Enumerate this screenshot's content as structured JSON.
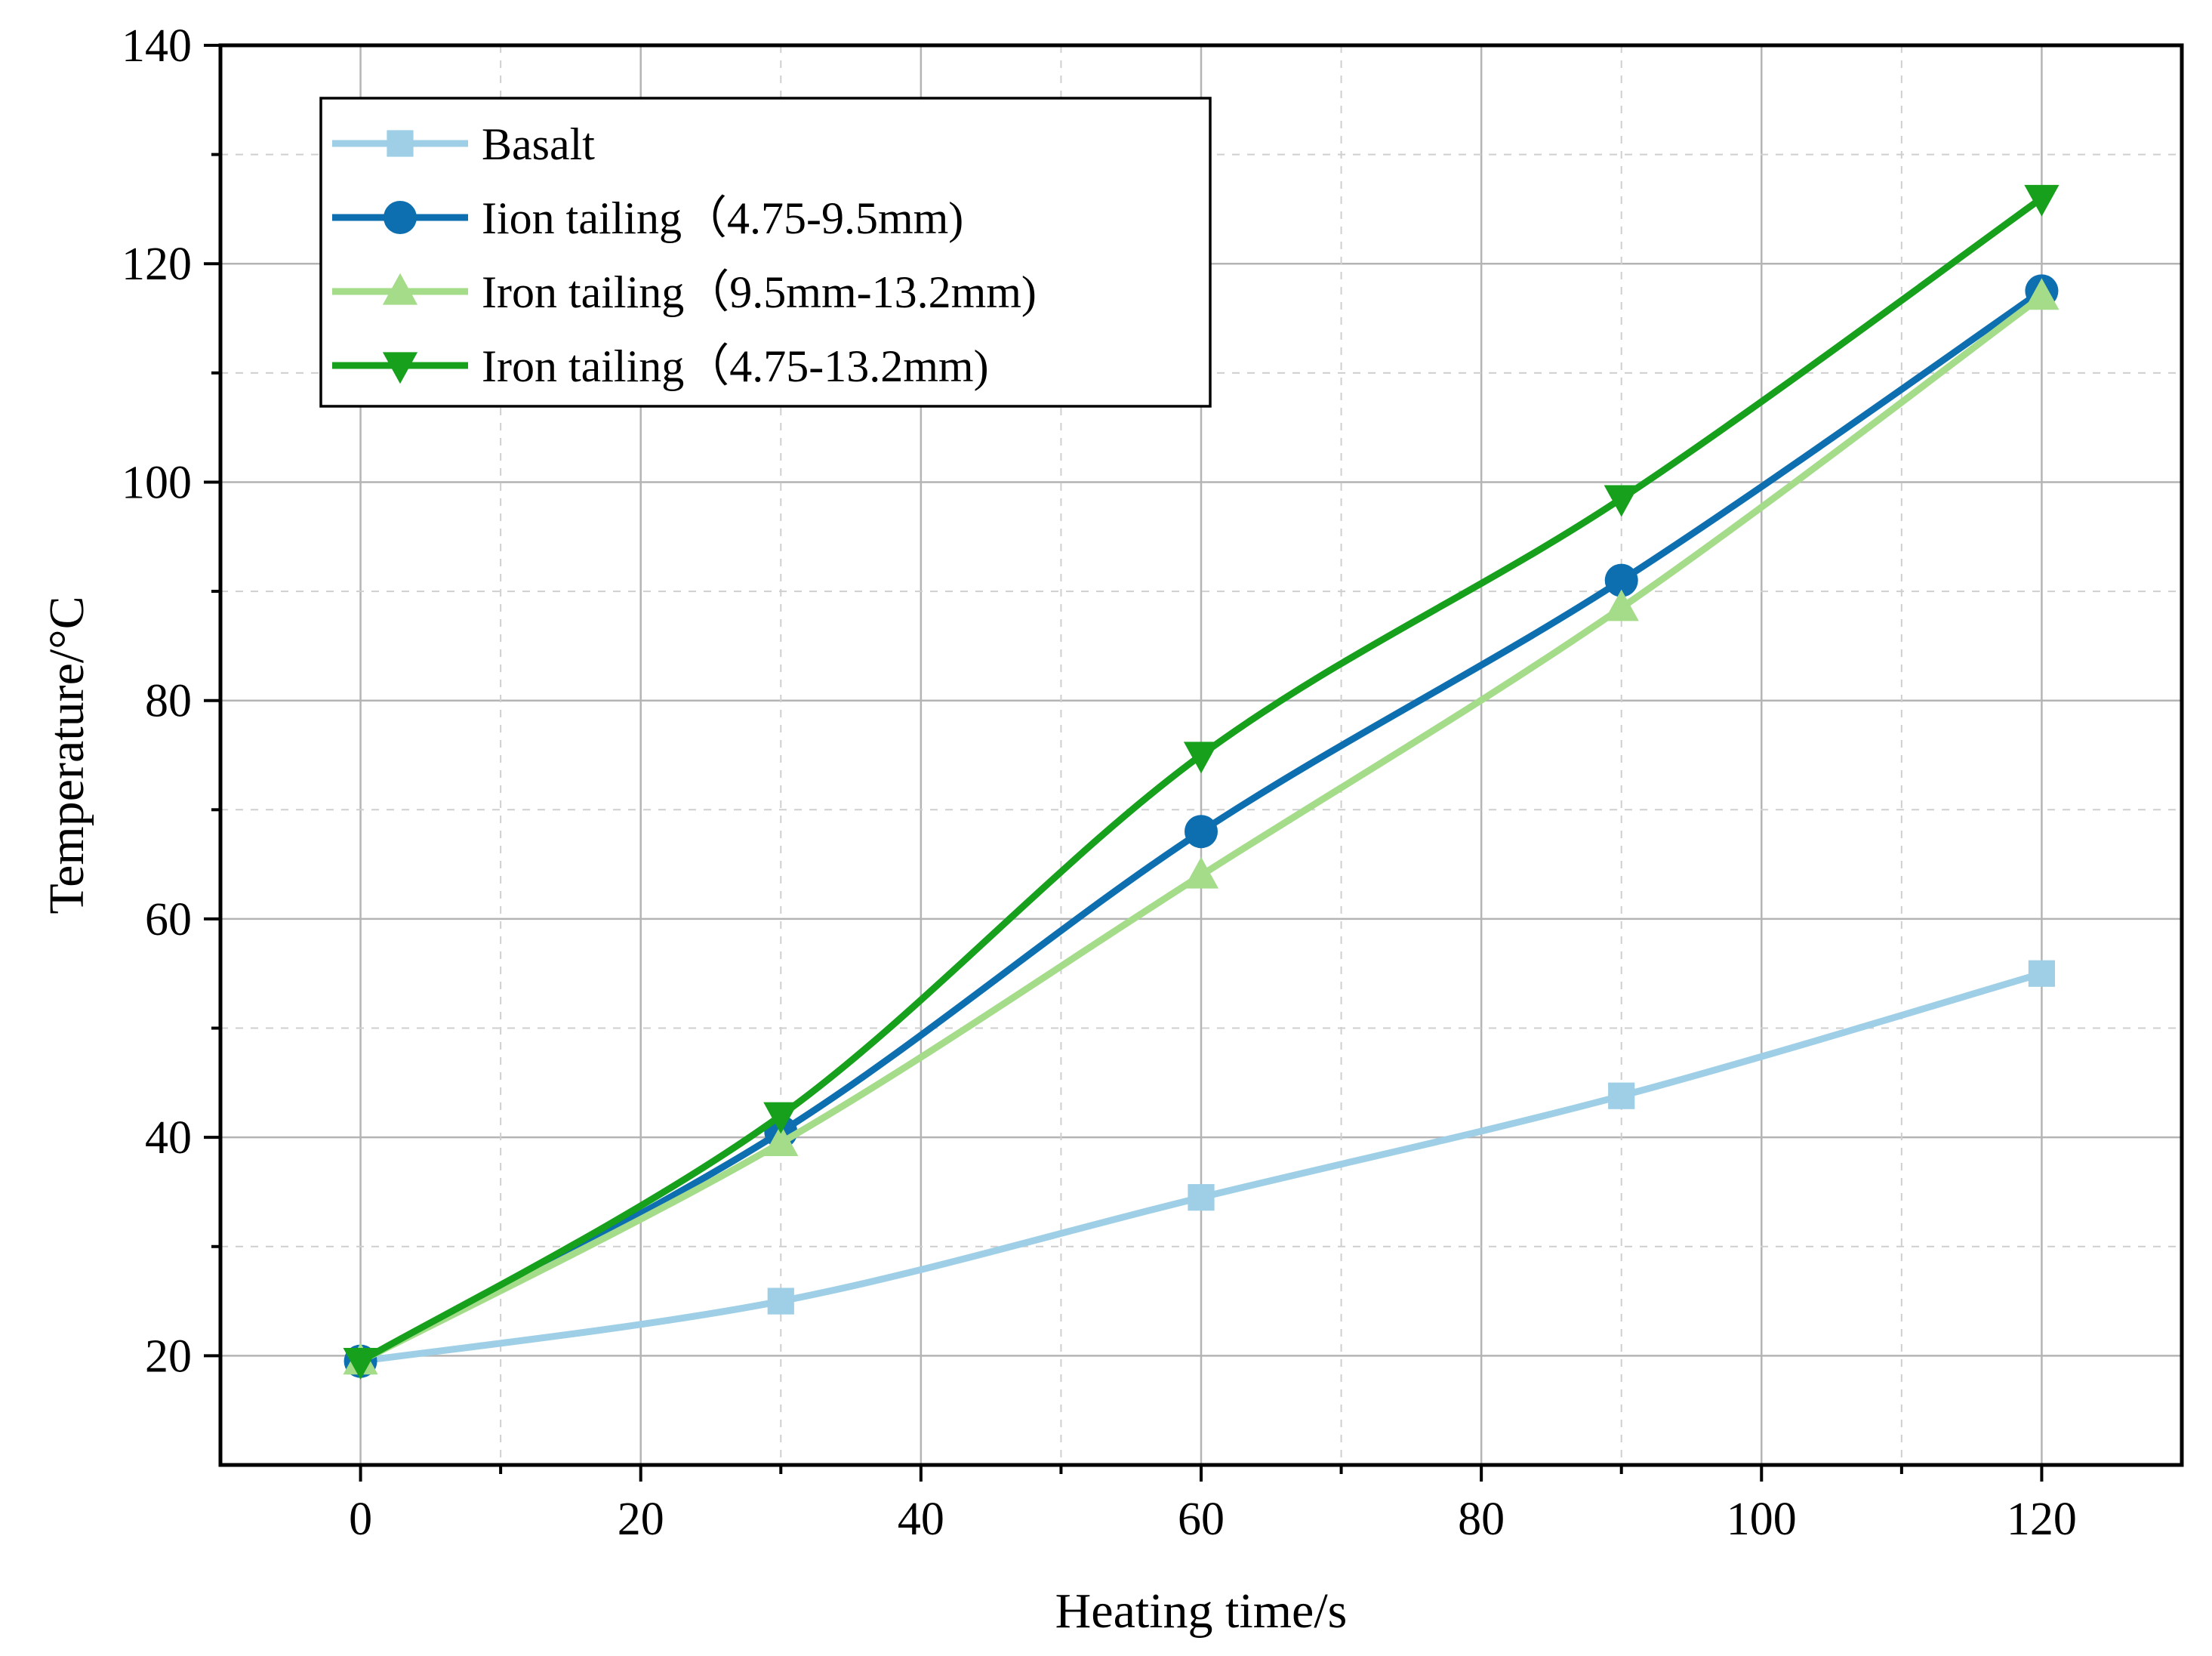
{
  "chart_data": {
    "type": "line",
    "title": "",
    "xlabel": "Heating time/s",
    "ylabel": "Temperature/°C",
    "xlim": [
      -10,
      130
    ],
    "ylim": [
      10,
      140
    ],
    "xticks": [
      0,
      20,
      40,
      60,
      80,
      100,
      120
    ],
    "yticks": [
      20,
      40,
      60,
      80,
      100,
      120,
      140
    ],
    "xtick_labels": [
      "0",
      "20",
      "40",
      "60",
      "80",
      "100",
      "120"
    ],
    "ytick_labels": [
      "20",
      "40",
      "60",
      "80",
      "100",
      "120",
      "140"
    ],
    "grid": true,
    "legend_position": "top-left",
    "x": [
      0,
      30,
      60,
      90,
      120
    ],
    "series": [
      {
        "name": "Basalt",
        "values": [
          19.5,
          25,
          34.5,
          43.8,
          55
        ],
        "color": "#9ecfe6",
        "marker": "square"
      },
      {
        "name": "Iion tailing（4.75-9.5mm)",
        "values": [
          19.5,
          40.5,
          68,
          91,
          117.5
        ],
        "color": "#0d6fb0",
        "marker": "circle"
      },
      {
        "name": "Iron tailing（9.5mm-13.2mm)",
        "values": [
          19.5,
          39.5,
          64,
          88.5,
          117
        ],
        "color": "#a4dc8a",
        "marker": "triangle-up"
      },
      {
        "name": "Iron tailing（4.75-13.2mm)",
        "values": [
          19.5,
          42,
          75,
          98.5,
          126
        ],
        "color": "#16a01c",
        "marker": "triangle-down"
      }
    ]
  }
}
